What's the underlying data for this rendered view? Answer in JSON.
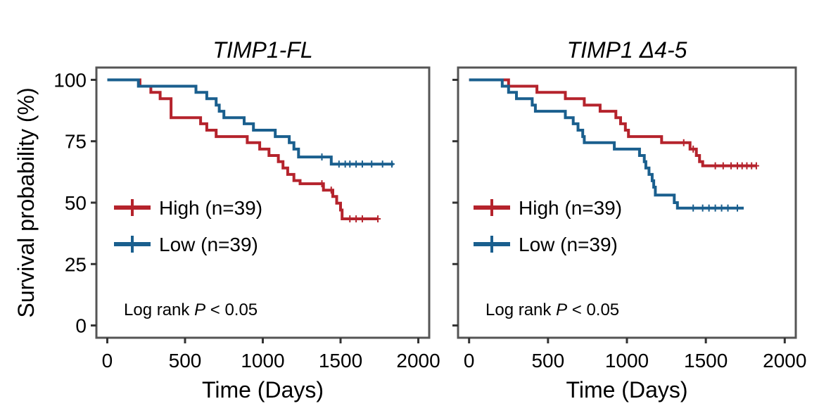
{
  "chart_data": [
    {
      "type": "line",
      "subtype": "kaplan-meier",
      "title": "TIMP1-FL",
      "xlabel": "Time (Days)",
      "ylabel": "Survival probability (%)",
      "xlim": [
        -70,
        2070
      ],
      "ylim": [
        -5,
        105
      ],
      "x_ticks": [
        0,
        500,
        1000,
        1500,
        2000
      ],
      "y_ticks": [
        0,
        25,
        50,
        75,
        100
      ],
      "show_y_tick_labels": true,
      "annotation": {
        "text_pre": "Log rank ",
        "text_p": "P",
        "text_post": " < 0.05"
      },
      "legend_position": "middle-left",
      "series": [
        {
          "name": "High (n=39)",
          "color": "#b5232c",
          "steps": [
            [
              0,
              100
            ],
            [
              210,
              100
            ],
            [
              210,
              97.4
            ],
            [
              280,
              97.4
            ],
            [
              280,
              94.9
            ],
            [
              340,
              94.9
            ],
            [
              340,
              92.3
            ],
            [
              410,
              92.3
            ],
            [
              410,
              84.6
            ],
            [
              600,
              84.6
            ],
            [
              600,
              82.1
            ],
            [
              640,
              82.1
            ],
            [
              640,
              79.5
            ],
            [
              700,
              79.5
            ],
            [
              700,
              76.9
            ],
            [
              900,
              76.9
            ],
            [
              900,
              74.4
            ],
            [
              980,
              74.4
            ],
            [
              980,
              71.8
            ],
            [
              1040,
              71.8
            ],
            [
              1040,
              69.2
            ],
            [
              1100,
              69.2
            ],
            [
              1100,
              66.7
            ],
            [
              1130,
              66.7
            ],
            [
              1130,
              64.1
            ],
            [
              1160,
              64.1
            ],
            [
              1160,
              61.5
            ],
            [
              1200,
              61.5
            ],
            [
              1200,
              59.0
            ],
            [
              1240,
              59.0
            ],
            [
              1240,
              57.7
            ],
            [
              1390,
              57.7
            ],
            [
              1390,
              55.1
            ],
            [
              1450,
              55.1
            ],
            [
              1450,
              52.5
            ],
            [
              1475,
              52.5
            ],
            [
              1475,
              49.8
            ],
            [
              1500,
              49.8
            ],
            [
              1500,
              47.0
            ],
            [
              1510,
              47.0
            ],
            [
              1510,
              43.4
            ],
            [
              1740,
              43.4
            ]
          ],
          "censors": [
            [
              1380,
              57.7
            ],
            [
              1440,
              55.1
            ],
            [
              1560,
              43.4
            ],
            [
              1600,
              43.4
            ],
            [
              1640,
              43.4
            ],
            [
              1740,
              43.4
            ]
          ]
        },
        {
          "name": "Low (n=39)",
          "color": "#1a5f8e",
          "steps": [
            [
              0,
              100
            ],
            [
              200,
              100
            ],
            [
              200,
              97.4
            ],
            [
              570,
              97.4
            ],
            [
              570,
              94.9
            ],
            [
              640,
              94.9
            ],
            [
              640,
              92.3
            ],
            [
              700,
              92.3
            ],
            [
              700,
              89.7
            ],
            [
              720,
              89.7
            ],
            [
              720,
              87.2
            ],
            [
              750,
              87.2
            ],
            [
              750,
              84.6
            ],
            [
              880,
              84.6
            ],
            [
              880,
              82.1
            ],
            [
              940,
              82.1
            ],
            [
              940,
              79.5
            ],
            [
              1080,
              79.5
            ],
            [
              1080,
              76.9
            ],
            [
              1170,
              76.9
            ],
            [
              1170,
              74.4
            ],
            [
              1200,
              74.4
            ],
            [
              1200,
              71.8
            ],
            [
              1230,
              71.8
            ],
            [
              1230,
              68.6
            ],
            [
              1440,
              68.6
            ],
            [
              1440,
              65.7
            ],
            [
              1840,
              65.7
            ]
          ],
          "censors": [
            [
              1380,
              68.6
            ],
            [
              1490,
              65.7
            ],
            [
              1530,
              65.7
            ],
            [
              1560,
              65.7
            ],
            [
              1600,
              65.7
            ],
            [
              1640,
              65.7
            ],
            [
              1700,
              65.7
            ],
            [
              1770,
              65.7
            ],
            [
              1830,
              65.7
            ]
          ]
        }
      ]
    },
    {
      "type": "line",
      "subtype": "kaplan-meier",
      "title": "TIMP1 Δ4-5",
      "xlabel": "Time (Days)",
      "ylabel": "",
      "xlim": [
        -70,
        2070
      ],
      "ylim": [
        -5,
        105
      ],
      "x_ticks": [
        0,
        500,
        1000,
        1500,
        2000
      ],
      "y_ticks": [
        0,
        25,
        50,
        75,
        100
      ],
      "show_y_tick_labels": false,
      "annotation": {
        "text_pre": "Log rank ",
        "text_p": "P",
        "text_post": " < 0.05"
      },
      "legend_position": "middle-left",
      "series": [
        {
          "name": "High (n=39)",
          "color": "#b5232c",
          "steps": [
            [
              0,
              100
            ],
            [
              250,
              100
            ],
            [
              250,
              97.4
            ],
            [
              430,
              97.4
            ],
            [
              430,
              94.9
            ],
            [
              610,
              94.9
            ],
            [
              610,
              92.3
            ],
            [
              730,
              92.3
            ],
            [
              730,
              89.7
            ],
            [
              830,
              89.7
            ],
            [
              830,
              87.2
            ],
            [
              930,
              87.2
            ],
            [
              930,
              84.6
            ],
            [
              960,
              84.6
            ],
            [
              960,
              82.1
            ],
            [
              990,
              82.1
            ],
            [
              990,
              79.5
            ],
            [
              1010,
              79.5
            ],
            [
              1010,
              76.9
            ],
            [
              1220,
              76.9
            ],
            [
              1220,
              74.4
            ],
            [
              1400,
              74.4
            ],
            [
              1400,
              71.8
            ],
            [
              1440,
              71.8
            ],
            [
              1440,
              69.2
            ],
            [
              1460,
              69.2
            ],
            [
              1460,
              66.7
            ],
            [
              1480,
              66.7
            ],
            [
              1480,
              65.0
            ],
            [
              1820,
              65.0
            ]
          ],
          "censors": [
            [
              1360,
              74.4
            ],
            [
              1420,
              71.8
            ],
            [
              1560,
              65.0
            ],
            [
              1610,
              65.0
            ],
            [
              1660,
              65.0
            ],
            [
              1700,
              65.0
            ],
            [
              1730,
              65.0
            ],
            [
              1760,
              65.0
            ],
            [
              1790,
              65.0
            ],
            [
              1820,
              65.0
            ]
          ]
        },
        {
          "name": "Low (n=39)",
          "color": "#1a5f8e",
          "steps": [
            [
              0,
              100
            ],
            [
              210,
              100
            ],
            [
              210,
              97.4
            ],
            [
              250,
              97.4
            ],
            [
              250,
              94.9
            ],
            [
              300,
              94.9
            ],
            [
              300,
              92.3
            ],
            [
              400,
              92.3
            ],
            [
              400,
              89.7
            ],
            [
              420,
              89.7
            ],
            [
              420,
              87.2
            ],
            [
              610,
              87.2
            ],
            [
              610,
              84.6
            ],
            [
              660,
              84.6
            ],
            [
              660,
              82.1
            ],
            [
              690,
              82.1
            ],
            [
              690,
              79.5
            ],
            [
              720,
              79.5
            ],
            [
              720,
              76.9
            ],
            [
              730,
              76.9
            ],
            [
              730,
              74.4
            ],
            [
              920,
              74.4
            ],
            [
              920,
              71.8
            ],
            [
              1080,
              71.8
            ],
            [
              1080,
              69.2
            ],
            [
              1110,
              69.2
            ],
            [
              1110,
              66.7
            ],
            [
              1120,
              66.7
            ],
            [
              1120,
              64.1
            ],
            [
              1140,
              64.1
            ],
            [
              1140,
              61.5
            ],
            [
              1160,
              61.5
            ],
            [
              1160,
              58.9
            ],
            [
              1170,
              58.9
            ],
            [
              1170,
              56.3
            ],
            [
              1180,
              56.3
            ],
            [
              1180,
              53.1
            ],
            [
              1300,
              53.1
            ],
            [
              1300,
              50.0
            ],
            [
              1320,
              50.0
            ],
            [
              1320,
              47.8
            ],
            [
              1740,
              47.8
            ]
          ],
          "censors": [
            [
              1420,
              47.8
            ],
            [
              1480,
              47.8
            ],
            [
              1520,
              47.8
            ],
            [
              1560,
              47.8
            ],
            [
              1600,
              47.8
            ],
            [
              1640,
              47.8
            ],
            [
              1700,
              47.8
            ]
          ]
        }
      ]
    }
  ]
}
